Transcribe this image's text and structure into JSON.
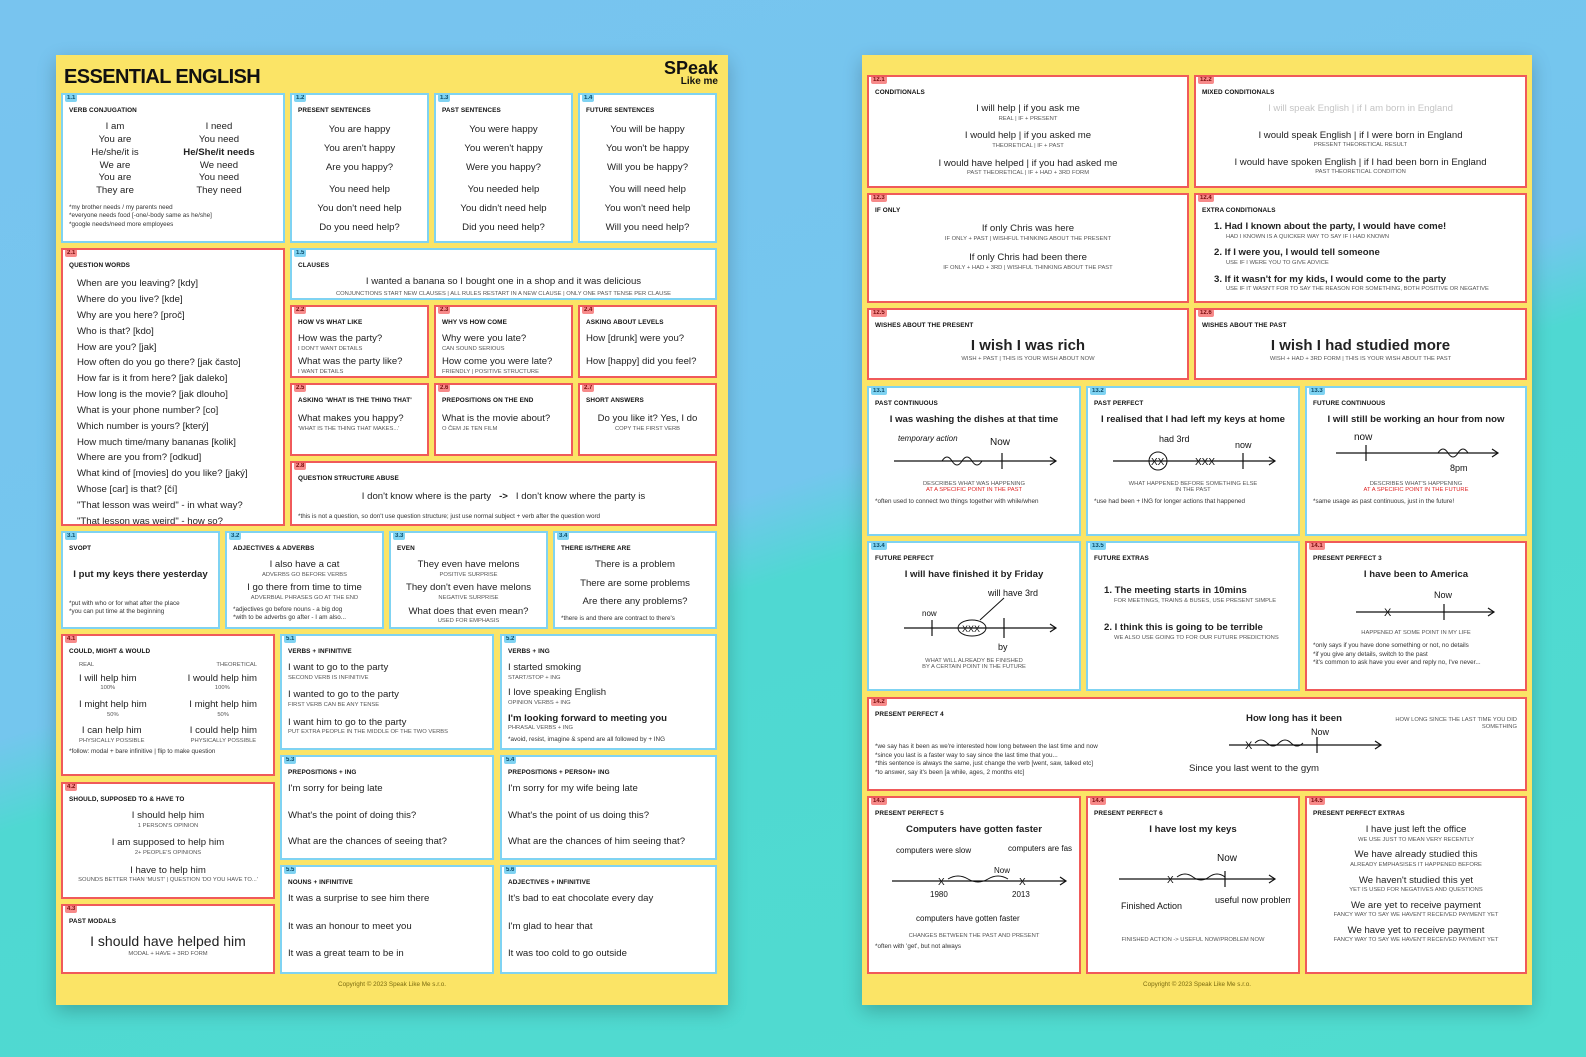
{
  "left": {
    "title": "ESSENTIAL ENGLISH",
    "logo_top": "SPeak",
    "logo_bottom": "Like me",
    "copyright": "Copyright © 2023 Speak Like Me s.r.o.",
    "c11": {
      "num": "1.1",
      "title": "VERB CONJUGATION",
      "col_a": [
        "I am",
        "You are",
        "He/she/it is",
        "We are",
        "You are",
        "They are"
      ],
      "col_b": [
        "I need",
        "You need",
        "He/She/it needs",
        "We need",
        "You need",
        "They need"
      ],
      "notes": [
        "*my brother needs / my parents need",
        "*everyone needs food [-one/-body same as he/she]",
        "*google needs/need more employees"
      ]
    },
    "c12": {
      "num": "1.2",
      "title": "PRESENT SENTENCES",
      "lines": [
        "You are happy",
        "You aren't happy",
        "Are you happy?",
        "You need help",
        "You don't need help",
        "Do you need help?"
      ]
    },
    "c13": {
      "num": "1.3",
      "title": "PAST SENTENCES",
      "lines": [
        "You were happy",
        "You weren't happy",
        "Were you happy?",
        "You needed help",
        "You didn't need help",
        "Did you need help?"
      ]
    },
    "c14": {
      "num": "1.4",
      "title": "FUTURE SENTENCES",
      "lines": [
        "You will be happy",
        "You won't be happy",
        "Will you be happy?",
        "You will need help",
        "You won't need help",
        "Will you need help?"
      ]
    },
    "c21": {
      "num": "2.1",
      "title": "QUESTION WORDS",
      "lines": [
        "When are you leaving? [kdy]",
        "Where do you live? [kde]",
        "Why are you here? [proč]",
        "Who is that? [kdo]",
        "How are you? [jak]",
        "How often do you go there? [jak často]",
        "How far is it from here? [jak daleko]",
        "How long is the movie? [jak dlouho]",
        "What is your phone number? [co]",
        "Which number is yours? [který]",
        "How much time/many bananas [kolik]",
        "Where are you from? [odkud]",
        "What kind of [movies] do you like? [jaký]",
        "Whose [car] is that? [čí]",
        "\"That lesson was weird\" - in what way?",
        "\"That lesson was weird\" - how so?"
      ]
    },
    "c15": {
      "num": "1.5",
      "title": "CLAUSES",
      "line": "I wanted a banana so I bought one in a shop and it was delicious",
      "sub": "CONJUNCTIONS START NEW CLAUSES | ALL RULES RESTART IN A NEW CLAUSE | ONLY ONE PAST TENSE PER CLAUSE"
    },
    "c22": {
      "num": "2.2",
      "title": "HOW VS WHAT LIKE",
      "l1": "How was the party?",
      "s1": "I DON'T WANT DETAILS",
      "l2": "What was the party like?",
      "s2": "I WANT DETAILS"
    },
    "c23": {
      "num": "2.3",
      "title": "WHY VS HOW COME",
      "l1": "Why were you late?",
      "s1": "CAN SOUND SERIOUS",
      "l2": "How come you were late?",
      "s2": "FRIENDLY | POSITIVE STRUCTURE"
    },
    "c24": {
      "num": "2.4",
      "title": "ASKING ABOUT LEVELS",
      "l1": "How [drunk] were you?",
      "l2": "How [happy] did you feel?"
    },
    "c25": {
      "num": "2.5",
      "title": "ASKING 'WHAT IS THE THING THAT'",
      "l1": "What makes you happy?",
      "s1": "'WHAT IS THE THING THAT MAKES...'"
    },
    "c26": {
      "num": "2.6",
      "title": "PREPOSITIONS ON THE END",
      "l1": "What is the movie about?",
      "s1": "O ČEM JE TEN FILM"
    },
    "c27": {
      "num": "2.7",
      "title": "SHORT ANSWERS",
      "l1": "Do you like it? Yes, I do",
      "s1": "COPY THE FIRST VERB"
    },
    "c28": {
      "num": "2.8",
      "title": "QUESTION STRUCTURE ABUSE",
      "l1": "I don't know where is the party",
      "arrow": "->",
      "l2": "I don't know where the party is",
      "note": "*this is not a question, so don't use question structure; just use normal subject + verb after the question word"
    },
    "c31": {
      "num": "3.1",
      "title": "SVOPT",
      "l1": "I put my keys there yesterday",
      "notes": [
        "*put with who or for what after the place",
        "*you can put time at the beginning"
      ]
    },
    "c32": {
      "num": "3.2",
      "title": "ADJECTIVES & ADVERBS",
      "l1": "I also have a cat",
      "s1": "ADVERBS GO BEFORE VERBS",
      "l2": "I go there from time to time",
      "s2": "ADVERBIAL PHRASES GO AT THE END",
      "notes": [
        "*adjectives go before nouns - a big dog",
        "*with to be adverbs go after - I am also..."
      ]
    },
    "c33": {
      "num": "3.3",
      "title": "EVEN",
      "l1": "They even have melons",
      "s1": "POSITIVE SURPRISE",
      "l2": "They don't even have melons",
      "s2": "NEGATIVE SURPRISE",
      "l3": "What does that even mean?",
      "s3": "USED FOR EMPHASIS"
    },
    "c34": {
      "num": "3.4",
      "title": "THERE IS/THERE ARE",
      "l1": "There is a problem",
      "l2": "There are some problems",
      "l3": "Are there any problems?",
      "note": "*there is and there are contract to there's"
    },
    "c41": {
      "num": "4.1",
      "title": "COULD, MIGHT & WOULD",
      "h_real": "REAL",
      "h_theo": "THEORETICAL",
      "rows": [
        {
          "a": "I will help him",
          "b": "I would help him",
          "s": "100%"
        },
        {
          "a": "I might help him",
          "b": "I might help him",
          "s": "50%"
        },
        {
          "a": "I can help him",
          "b": "I could help him",
          "s": "PHYSICALLY POSSIBLE"
        }
      ],
      "note": "*follow: modal + bare infinitive | flip to make question"
    },
    "c51": {
      "num": "5.1",
      "title": "VERBS + INFINITIVE",
      "l1": "I want to go to the party",
      "s1": "SECOND VERB IS INFINITIVE",
      "l2": "I wanted to go to the party",
      "s2": "FIRST VERB CAN BE ANY TENSE",
      "l3": "I want him to go to the party",
      "s3": "PUT EXTRA PEOPLE IN THE MIDDLE OF THE TWO VERBS"
    },
    "c52": {
      "num": "5.2",
      "title": "VERBS + ING",
      "l1": "I started smoking",
      "s1": "START/STOP + ING",
      "l2": "I love speaking English",
      "s2": "OPINION VERBS + ING",
      "l3": "I'm looking forward to meeting you",
      "s3": "PHRASAL VERBS + ING",
      "note": "*avoid, resist, imagine & spend are all followed by + ING"
    },
    "c42": {
      "num": "4.2",
      "title": "SHOULD, SUPPOSED TO & HAVE TO",
      "l1": "I should help him",
      "s1": "1 PERSON'S OPINION",
      "l2": "I am supposed to help him",
      "s2": "2+ PEOPLE'S OPINIONS",
      "l3": "I have to help him",
      "s3": "SOUNDS BETTER THAN 'MUST' | QUESTION 'DO YOU HAVE TO...'"
    },
    "c53": {
      "num": "5.3",
      "title": "PREPOSITIONS + ING",
      "l1": "I'm sorry for being late",
      "l2": "What's the point of doing this?",
      "l3": "What are the chances of seeing that?"
    },
    "c54": {
      "num": "5.4",
      "title": "PREPOSITIONS + PERSON+ ING",
      "l1": "I'm sorry for my wife being late",
      "l2": "What's the point of us doing this?",
      "l3": "What are the chances of him seeing that?"
    },
    "c43": {
      "num": "4.3",
      "title": "PAST MODALS",
      "l1": "I should have helped him",
      "s1": "MODAL + HAVE + 3RD FORM"
    },
    "c55": {
      "num": "5.5",
      "title": "NOUNS + INFINITIVE",
      "l1": "It was a surprise to see him there",
      "l2": "It was an honour to meet you",
      "l3": "It was a great team to be in"
    },
    "c56": {
      "num": "5.6",
      "title": "ADJECTIVES + INFINITIVE",
      "l1": "It's bad to eat chocolate every day",
      "l2": "I'm glad to hear that",
      "l3": "It was too cold to go outside"
    }
  },
  "right": {
    "copyright": "Copyright © 2023 Speak Like Me s.r.o.",
    "c121": {
      "num": "12.1",
      "title": "CONDITIONALS",
      "l1": "I will help | if you ask me",
      "s1": "REAL | IF + PRESENT",
      "l2": "I would help | if you asked me",
      "s2": "THEORETICAL | IF + PAST",
      "l3": "I would have helped | if you had asked me",
      "s3": "PAST THEORETICAL | IF + HAD + 3RD FORM"
    },
    "c122": {
      "num": "12.2",
      "title": "MIXED CONDITIONALS",
      "l1": "I will speak English | if I am born in England",
      "l2": "I would speak English | if I were born in England",
      "s2": "PRESENT THEORETICAL RESULT",
      "l3": "I would have spoken English | if I had been born in England",
      "s3": "PAST THEORETICAL CONDITION"
    },
    "c123": {
      "num": "12.3",
      "title": "IF ONLY",
      "l1": "If only Chris was here",
      "s1": "IF ONLY + PAST | WISHFUL THINKING ABOUT THE PRESENT",
      "l2": "If only Chris had been there",
      "s2": "IF ONLY + HAD + 3RD | WISHFUL THINKING ABOUT THE PAST"
    },
    "c124": {
      "num": "12.4",
      "title": "EXTRA CONDITIONALS",
      "l1": "1. Had I known about the party, I would have come!",
      "s1": "HAD I KNOWN IS A QUICKER WAY TO SAY IF I HAD KNOWN",
      "l2": "2. If I were you, I would tell someone",
      "s2": "USE IF I WERE YOU TO GIVE ADVICE",
      "l3": "3. If it wasn't for my kids, I would come to the party",
      "s3": "USE IF IT WASN'T FOR TO SAY THE REASON FOR SOMETHING, BOTH POSITIVE OR NEGATIVE"
    },
    "c125": {
      "num": "12.5",
      "title": "WISHES ABOUT THE PRESENT",
      "l1": "I wish I was rich",
      "s1": "WISH + PAST | THIS IS YOUR WISH ABOUT NOW"
    },
    "c126": {
      "num": "12.6",
      "title": "WISHES ABOUT THE PAST",
      "l1": "I wish I had studied more",
      "s1": "WISH + HAD + 3RD FORM | THIS IS YOUR WISH ABOUT THE PAST"
    },
    "c131": {
      "num": "13.1",
      "title": "PAST CONTINUOUS",
      "l1": "I was washing the dishes at that time",
      "d1": "temporary action",
      "d2": "Now",
      "s1": "DESCRIBES WHAT WAS HAPPENING",
      "s2": "AT A SPECIFIC POINT IN THE PAST",
      "note": "*often used to connect two things together with while/when"
    },
    "c132": {
      "num": "13.2",
      "title": "PAST PERFECT",
      "l1": "I realised that I had left my keys at home",
      "d1": "had 3rd",
      "d2": "now",
      "s1": "WHAT HAPPENED BEFORE SOMETHING ELSE",
      "s2": "IN THE PAST",
      "note": "*use had been + ING for longer actions that happened"
    },
    "c133": {
      "num": "13.3",
      "title": "FUTURE CONTINUOUS",
      "l1": "I will still be working an hour from now",
      "d1": "now",
      "d2": "8pm",
      "s1": "DESCRIBES WHAT'S HAPPENING",
      "s2": "AT A SPECIFIC POINT IN THE FUTURE",
      "note": "*same usage as past continuous, just in the future!"
    },
    "c134": {
      "num": "13.4",
      "title": "FUTURE PERFECT",
      "l1": "I will have finished it by Friday",
      "d1": "will have 3rd",
      "d2": "now",
      "d3": "by",
      "s1": "WHAT WILL ALREADY BE FINISHED",
      "s2": "BY A CERTAIN POINT IN THE FUTURE"
    },
    "c135": {
      "num": "13.5",
      "title": "FUTURE EXTRAS",
      "l1": "1. The meeting starts in 10mins",
      "s1": "FOR MEETINGS, TRAINS & BUSES, USE PRESENT SIMPLE",
      "l2": "2. I think this is going to be terrible",
      "s2": "WE ALSO USE GOING TO FOR OUR FUTURE PREDICTIONS"
    },
    "c141": {
      "num": "14.1",
      "title": "PRESENT PERFECT 3",
      "l1": "I have been to America",
      "d1": "Now",
      "s1": "HAPPENED AT SOME POINT IN MY LIFE",
      "notes": [
        "*only says if you have done something or not, no details",
        "*if you give any details, switch to the past",
        "*it's common to ask have you ever and reply no, I've never..."
      ]
    },
    "c142": {
      "num": "14.2",
      "title": "PRESENT PERFECT 4",
      "l1": "How long has it been",
      "d1": "Now",
      "l2": "Since you last went to the gym",
      "side": "HOW LONG SINCE THE LAST TIME YOU DID SOMETHING",
      "notes": [
        "*we say has it been as we're interested how long between the last time and now",
        "*since you last is a faster way to say since the last time that you...",
        "*this sentence is always the same, just change the verb [went, saw, talked etc]",
        "*to answer, say it's been [a while, ages, 2 months etc]"
      ]
    },
    "c143": {
      "num": "14.3",
      "title": "PRESENT PERFECT 5",
      "l1": "Computers have gotten faster",
      "d1": "computers were slow",
      "d2": "computers are fast",
      "d3": "Now",
      "d4": "1980",
      "d5": "2013",
      "d6": "computers have gotten faster",
      "s1": "CHANGES BETWEEN THE PAST AND PRESENT",
      "note": "*often with 'get', but not always"
    },
    "c144": {
      "num": "14.4",
      "title": "PRESENT PERFECT 6",
      "l1": "I have lost my keys",
      "d1": "Now",
      "d2": "useful now problem now",
      "d3": "Finished Action",
      "s1": "FINISHED ACTION -> USEFUL NOW/PROBLEM NOW"
    },
    "c145": {
      "num": "14.5",
      "title": "PRESENT PERFECT EXTRAS",
      "l1": "I have just left the office",
      "s1": "WE USE JUST TO MEAN VERY RECENTLY",
      "l2": "We have already studied this",
      "s2": "ALREADY EMPHASISES IT HAPPENED BEFORE",
      "l3": "We haven't studied this yet",
      "s3": "YET IS USED FOR NEGATIVES AND QUESTIONS",
      "l4": "We are yet to receive payment",
      "s4": "FANCY WAY TO SAY WE HAVEN'T RECEIVED PAYMENT YET",
      "l5": "We have yet to receive payment",
      "s5": "FANCY WAY TO SAY WE HAVEN'T RECEIVED PAYMENT YET"
    }
  },
  "colors": {
    "card_red": "#f05a5a",
    "card_blue": "#7fd3f2",
    "poster": "#fbe466",
    "accent_red": "#e02525",
    "accent_blue": "#2a5cd8",
    "accent_green": "#2ea24a"
  }
}
